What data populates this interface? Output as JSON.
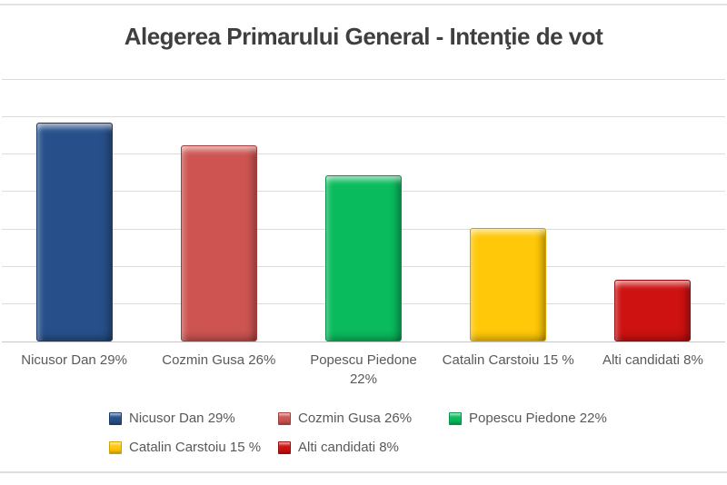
{
  "chart_data": {
    "type": "bar",
    "title": "Alegerea Primarului General - Intenţie de vot",
    "categories": [
      "Nicusor Dan 29%",
      "Cozmin Gusa 26%",
      "Popescu Piedone\n22%",
      "Catalin Carstoiu 15 %",
      "Alti candidati 8%"
    ],
    "values": [
      29,
      26,
      22,
      15,
      8
    ],
    "unit": "%",
    "xlabel": "",
    "ylabel": "",
    "ylim": [
      0,
      35
    ],
    "grid_step": 5,
    "grid": true,
    "y_axis_labels_shown": false,
    "legend_position": "bottom",
    "colors": [
      {
        "fill": "#27508A",
        "edge": "#173A69"
      },
      {
        "fill": "#CD5451",
        "edge": "#A03C3A"
      },
      {
        "fill": "#0ABB5D",
        "edge": "#069148"
      },
      {
        "fill": "#FFC808",
        "edge": "#D79E00"
      },
      {
        "fill": "#CE1111",
        "edge": "#950B0B"
      }
    ]
  },
  "legend": {
    "items": [
      {
        "label": "Nicusor Dan 29%",
        "color": "#27508A",
        "edge": "#173A69"
      },
      {
        "label": "Cozmin Gusa 26%",
        "color": "#CD5451",
        "edge": "#A03C3A"
      },
      {
        "label": "Popescu Piedone 22%",
        "color": "#0ABB5D",
        "edge": "#069148"
      },
      {
        "label": "Catalin Carstoiu 15 %",
        "color": "#FFC808",
        "edge": "#D79E00"
      },
      {
        "label": "Alti candidati 8%",
        "color": "#CE1111",
        "edge": "#950B0B"
      }
    ]
  }
}
